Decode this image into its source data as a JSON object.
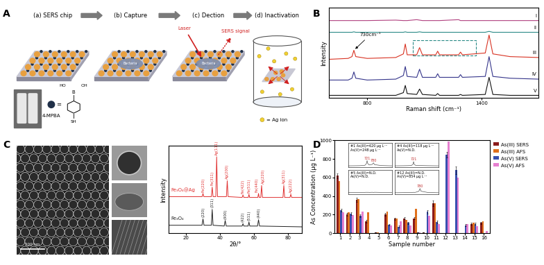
{
  "panel_labels": [
    "A",
    "B",
    "C",
    "D"
  ],
  "schematic": {
    "steps": [
      "(a) SERS chip",
      "(b) Capture",
      "(c) Dection",
      "(d) Inactivation"
    ],
    "molecule": "4-MPBA",
    "atoms": [
      "B",
      "OH",
      "HO",
      "SH"
    ],
    "equals": "=",
    "bacteria": "Bacteria",
    "laser": "Laser",
    "signal": "SERS signal",
    "ion_legend": "= Ag ion"
  },
  "tem": {
    "scale_bar": "200 nm"
  },
  "chart_data": [
    {
      "type": "line",
      "x_label": "Raman shift (cm⁻¹)",
      "y_label": "Intensity",
      "tick_labels": "x",
      "x": [
        600,
        700,
        720,
        730,
        740,
        800,
        950,
        990,
        1000,
        1010,
        1060,
        1075,
        1090,
        1160,
        1170,
        1180,
        1280,
        1290,
        1300,
        1420,
        1440,
        1460,
        1550,
        1700
      ],
      "xlim": [
        600,
        1700
      ],
      "xticks": [
        800,
        1400
      ],
      "ylim": [
        0,
        10
      ],
      "yticks": [],
      "series": [
        {
          "name": "I",
          "color": "#b0407f",
          "values": [
            8.6,
            8.6,
            8.6,
            8.6,
            8.6,
            8.6,
            8.65,
            8.6,
            8.6,
            8.6,
            8.7,
            8.65,
            8.6,
            8.6,
            8.6,
            8.6,
            8.7,
            8.6,
            8.6,
            8.6,
            8.6,
            8.6,
            8.6,
            8.6
          ]
        },
        {
          "name": "II",
          "color": "#2a8a86",
          "values": [
            7.3,
            7.3,
            7.3,
            7.35,
            7.3,
            7.3,
            7.3,
            7.3,
            7.35,
            7.3,
            7.3,
            7.35,
            7.3,
            7.3,
            7.3,
            7.3,
            7.3,
            7.3,
            7.3,
            7.3,
            7.4,
            7.3,
            7.3,
            7.3
          ]
        },
        {
          "name": "III",
          "color": "#d83222",
          "values": [
            4.3,
            4.4,
            4.6,
            5.3,
            4.6,
            4.4,
            4.5,
            4.9,
            6.0,
            4.8,
            4.8,
            5.6,
            4.8,
            4.8,
            5.2,
            4.8,
            4.8,
            5.1,
            4.8,
            5.0,
            7.0,
            4.9,
            4.6,
            4.5
          ]
        },
        {
          "name": "IV",
          "color": "#34348a",
          "values": [
            2.0,
            2.0,
            2.2,
            2.9,
            2.2,
            2.0,
            2.1,
            2.5,
            3.5,
            2.4,
            2.3,
            3.2,
            2.3,
            2.3,
            2.7,
            2.3,
            2.3,
            2.6,
            2.3,
            2.4,
            4.6,
            2.4,
            2.2,
            2.1
          ]
        },
        {
          "name": "V",
          "color": "#111111",
          "values": [
            0.3,
            0.3,
            0.3,
            0.3,
            0.3,
            0.3,
            0.3,
            0.6,
            1.4,
            0.5,
            0.4,
            1.0,
            0.4,
            0.3,
            0.5,
            0.3,
            0.3,
            0.4,
            0.3,
            0.4,
            2.3,
            0.4,
            0.3,
            0.3
          ]
        }
      ],
      "annotations": [
        {
          "text": "730cm⁻¹",
          "x": 730,
          "y": 5.3
        }
      ],
      "highlight_box": {
        "x": [
          1040,
          1370
        ],
        "y": [
          4.7,
          6.4
        ]
      }
    },
    {
      "type": "line",
      "x_label": "2θ/°",
      "y_label": "Intensity",
      "tick_labels": "x",
      "xlim": [
        10,
        88
      ],
      "xticks": [
        20,
        40,
        60,
        80
      ],
      "ylim": [
        0,
        11
      ],
      "yticks": [],
      "series": [
        {
          "name": "Fe₃O₄@Ag",
          "color": "#e03030",
          "x": [
            10,
            29.6,
            30.1,
            30.6,
            35.0,
            35.5,
            36.0,
            37.6,
            38.1,
            38.6,
            43.8,
            44.3,
            44.8,
            53.0,
            53.5,
            54.0,
            56.6,
            57.0,
            57.4,
            62.2,
            62.6,
            63.0,
            63.9,
            64.4,
            64.9,
            76.9,
            77.4,
            77.9,
            81.0,
            81.5,
            82.0,
            88
          ],
          "values": [
            4.6,
            4.6,
            5.0,
            4.6,
            4.6,
            5.8,
            4.6,
            4.6,
            9.6,
            4.6,
            4.6,
            6.6,
            4.6,
            4.5,
            4.8,
            4.5,
            4.5,
            4.9,
            4.5,
            4.5,
            5.0,
            4.5,
            4.5,
            6.0,
            4.5,
            4.5,
            6.0,
            4.5,
            4.5,
            4.9,
            4.5,
            4.5
          ],
          "peaks": [
            {
              "x": 30.1,
              "label": "Fe(220)"
            },
            {
              "x": 35.5,
              "label": "Fe(311)"
            },
            {
              "x": 38.1,
              "label": "Ag(111)"
            },
            {
              "x": 44.3,
              "label": "Ag(200)"
            },
            {
              "x": 53.5,
              "label": "Fe(422)"
            },
            {
              "x": 57.0,
              "label": "Fe(511)"
            },
            {
              "x": 62.6,
              "label": "Fe(440)"
            },
            {
              "x": 64.4,
              "label": "Ag(220)"
            },
            {
              "x": 77.4,
              "label": "Ag(311)"
            },
            {
              "x": 81.5,
              "label": "Ag(222)"
            }
          ]
        },
        {
          "name": "Fe₃O₄",
          "color": "#222222",
          "x": [
            10,
            29.5,
            30.1,
            30.7,
            35.0,
            35.5,
            36.0,
            42.5,
            43.1,
            43.7,
            53.0,
            53.5,
            54.0,
            56.5,
            57.0,
            57.5,
            62.0,
            62.6,
            63.2,
            88
          ],
          "values": [
            1.0,
            1.0,
            1.8,
            1.0,
            1.0,
            3.0,
            1.0,
            0.9,
            1.6,
            0.9,
            0.9,
            1.2,
            0.9,
            0.9,
            1.4,
            0.9,
            0.9,
            1.7,
            0.9,
            0.8
          ],
          "peaks": [
            {
              "x": 30.1,
              "label": "(220)"
            },
            {
              "x": 35.5,
              "label": "(311)"
            },
            {
              "x": 43.1,
              "label": "(400)"
            },
            {
              "x": 53.5,
              "label": "(422)"
            },
            {
              "x": 57.0,
              "label": "(511)"
            },
            {
              "x": 62.6,
              "label": "(440)"
            }
          ]
        }
      ]
    },
    {
      "type": "bar",
      "x_label": "Sample number",
      "y_label": "As Concentration (μg L⁻¹)",
      "categories": [
        "1",
        "2",
        "3",
        "4",
        "5",
        "6",
        "7",
        "8",
        "9",
        "10",
        "11",
        "12",
        "13",
        "14",
        "15",
        "16"
      ],
      "ylim": [
        0,
        1000
      ],
      "yticks": [
        0,
        200,
        400,
        600,
        800,
        1000
      ],
      "legend": "upper right",
      "series": [
        {
          "name": "As(III) SERS",
          "color": "#8b1c1c",
          "values": [
            620,
            200,
            360,
            125,
            5,
            205,
            155,
            160,
            160,
            5,
            325,
            0,
            0,
            0,
            100,
            110
          ],
          "errors": [
            25,
            15,
            25,
            15,
            0,
            15,
            10,
            10,
            10,
            0,
            30,
            0,
            0,
            0,
            10,
            10
          ]
        },
        {
          "name": "As(III) AFS",
          "color": "#e0701c",
          "values": [
            560,
            225,
            370,
            225,
            5,
            235,
            160,
            145,
            260,
            0,
            325,
            0,
            0,
            0,
            115,
            125
          ]
        },
        {
          "name": "As(V) SERS",
          "color": "#3850b0",
          "values": [
            245,
            210,
            190,
            0,
            0,
            90,
            70,
            110,
            10,
            230,
            120,
            850,
            680,
            85,
            100,
            0
          ],
          "errors": [
            15,
            15,
            15,
            0,
            0,
            10,
            10,
            10,
            0,
            20,
            15,
            30,
            40,
            10,
            10,
            0
          ]
        },
        {
          "name": "As(V) AFS",
          "color": "#e67fd0",
          "values": [
            225,
            195,
            235,
            0,
            0,
            85,
            130,
            80,
            10,
            190,
            100,
            990,
            600,
            100,
            75,
            20
          ]
        }
      ],
      "insets": [
        {
          "title": "#1 As(III)=620 μg L⁻¹\nAs(V)=248 μg L⁻¹",
          "tick_labels": false,
          "xlim": [
            550,
            950
          ],
          "ylim": [
            0,
            16
          ],
          "x": [
            550,
            650,
            700,
            715,
            721,
            727,
            740,
            770,
            780,
            790,
            850,
            950
          ],
          "values": [
            1,
            1.1,
            1.3,
            2.5,
            4.5,
            2.6,
            1.6,
            2.0,
            3.0,
            1.8,
            1.2,
            1.0
          ],
          "peaks": [
            721,
            780
          ]
        },
        {
          "title": "#4 As(III)=118 μg L⁻¹\nAs(V)=N.D.",
          "tick_labels": false,
          "xlim": [
            550,
            950
          ],
          "ylim": [
            0,
            16
          ],
          "x": [
            550,
            650,
            700,
            715,
            721,
            727,
            740,
            770,
            780,
            790,
            850,
            950
          ],
          "values": [
            1,
            1.1,
            1.2,
            2.0,
            3.8,
            2.0,
            1.3,
            1.2,
            1.3,
            1.2,
            1.1,
            1.0
          ],
          "peaks": [
            721
          ]
        },
        {
          "title": "#5 As(III)=N.D.\nAs(V)=N.D.",
          "tick_labels": false,
          "xlim": [
            550,
            950
          ],
          "ylim": [
            0,
            16
          ],
          "x": [
            550,
            650,
            700,
            715,
            721,
            727,
            740,
            770,
            780,
            790,
            850,
            950
          ],
          "values": [
            1.2,
            1.1,
            1.2,
            1.3,
            1.2,
            1.3,
            1.2,
            1.3,
            1.2,
            1.3,
            1.2,
            1.1
          ],
          "peaks": []
        },
        {
          "title": "#12 As(III)=N.D.\nAs(V)=854 μg L⁻¹",
          "tick_labels": false,
          "xlim": [
            550,
            950
          ],
          "ylim": [
            0,
            16
          ],
          "x": [
            550,
            650,
            700,
            715,
            721,
            727,
            740,
            770,
            780,
            790,
            850,
            950
          ],
          "values": [
            1,
            1.1,
            1.1,
            1.2,
            1.3,
            1.2,
            1.3,
            2.0,
            3.8,
            2.0,
            1.2,
            1.0
          ],
          "peaks": [
            780
          ]
        }
      ]
    }
  ]
}
